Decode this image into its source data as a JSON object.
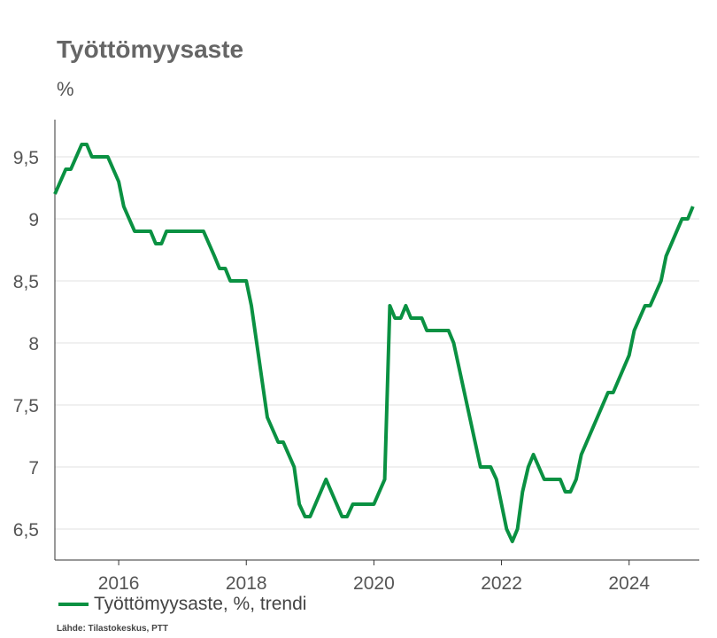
{
  "chart_data": {
    "type": "line",
    "title": "Työttömyysaste",
    "unit_label": "%",
    "xlim": [
      2015.0,
      2025.1
    ],
    "ylim": [
      6.25,
      9.8
    ],
    "y_ticks": [
      {
        "value": 6.5,
        "label": "6,5"
      },
      {
        "value": 7.0,
        "label": "7"
      },
      {
        "value": 7.5,
        "label": "7,5"
      },
      {
        "value": 8.0,
        "label": "8"
      },
      {
        "value": 8.5,
        "label": "8,5"
      },
      {
        "value": 9.0,
        "label": "9"
      },
      {
        "value": 9.5,
        "label": "9,5"
      }
    ],
    "x_ticks": [
      {
        "value": 2016.0,
        "label": "2016"
      },
      {
        "value": 2018.0,
        "label": "2018"
      },
      {
        "value": 2020.0,
        "label": "2020"
      },
      {
        "value": 2022.0,
        "label": "2022"
      },
      {
        "value": 2024.0,
        "label": "2024"
      }
    ],
    "grid": "horizontal",
    "series": [
      {
        "name": "Työttömyysaste, %, trendi",
        "color": "#0a9142",
        "points": [
          [
            2015.0,
            9.2
          ],
          [
            2015.17,
            9.4
          ],
          [
            2015.25,
            9.4
          ],
          [
            2015.42,
            9.6
          ],
          [
            2015.5,
            9.6
          ],
          [
            2015.58,
            9.5
          ],
          [
            2015.83,
            9.5
          ],
          [
            2016.0,
            9.3
          ],
          [
            2016.08,
            9.1
          ],
          [
            2016.25,
            8.9
          ],
          [
            2016.5,
            8.9
          ],
          [
            2016.58,
            8.8
          ],
          [
            2016.67,
            8.8
          ],
          [
            2016.75,
            8.9
          ],
          [
            2017.33,
            8.9
          ],
          [
            2017.5,
            8.7
          ],
          [
            2017.58,
            8.6
          ],
          [
            2017.67,
            8.6
          ],
          [
            2017.75,
            8.5
          ],
          [
            2018.0,
            8.5
          ],
          [
            2018.08,
            8.3
          ],
          [
            2018.33,
            7.4
          ],
          [
            2018.5,
            7.2
          ],
          [
            2018.58,
            7.2
          ],
          [
            2018.75,
            7.0
          ],
          [
            2018.83,
            6.7
          ],
          [
            2018.92,
            6.6
          ],
          [
            2019.0,
            6.6
          ],
          [
            2019.25,
            6.9
          ],
          [
            2019.5,
            6.6
          ],
          [
            2019.58,
            6.6
          ],
          [
            2019.67,
            6.7
          ],
          [
            2020.0,
            6.7
          ],
          [
            2020.17,
            6.9
          ],
          [
            2020.25,
            8.3
          ],
          [
            2020.33,
            8.2
          ],
          [
            2020.42,
            8.2
          ],
          [
            2020.5,
            8.3
          ],
          [
            2020.58,
            8.2
          ],
          [
            2020.75,
            8.2
          ],
          [
            2020.83,
            8.1
          ],
          [
            2021.17,
            8.1
          ],
          [
            2021.25,
            8.0
          ],
          [
            2021.67,
            7.0
          ],
          [
            2021.83,
            7.0
          ],
          [
            2021.92,
            6.9
          ],
          [
            2022.08,
            6.5
          ],
          [
            2022.17,
            6.4
          ],
          [
            2022.25,
            6.5
          ],
          [
            2022.33,
            6.8
          ],
          [
            2022.42,
            7.0
          ],
          [
            2022.5,
            7.1
          ],
          [
            2022.67,
            6.9
          ],
          [
            2022.92,
            6.9
          ],
          [
            2023.0,
            6.8
          ],
          [
            2023.08,
            6.8
          ],
          [
            2023.17,
            6.9
          ],
          [
            2023.25,
            7.1
          ],
          [
            2023.67,
            7.6
          ],
          [
            2023.75,
            7.6
          ],
          [
            2024.0,
            7.9
          ],
          [
            2024.08,
            8.1
          ],
          [
            2024.25,
            8.3
          ],
          [
            2024.33,
            8.3
          ],
          [
            2024.5,
            8.5
          ],
          [
            2024.58,
            8.7
          ],
          [
            2024.83,
            9.0
          ],
          [
            2024.92,
            9.0
          ],
          [
            2025.0,
            9.1
          ]
        ]
      }
    ]
  },
  "legend": {
    "label": "Työttömyysaste, %, trendi",
    "color": "#0a9142"
  },
  "source": "Lähde: Tilastokeskus, PTT"
}
